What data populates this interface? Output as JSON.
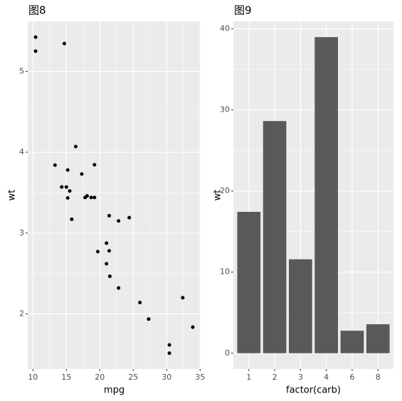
{
  "chart_data": [
    {
      "type": "scatter",
      "title": "图8",
      "x_label": "mpg",
      "y_label": "wt",
      "x": [
        21.0,
        21.0,
        22.8,
        21.4,
        18.7,
        18.1,
        14.3,
        24.4,
        22.8,
        19.2,
        17.8,
        16.4,
        17.3,
        15.2,
        10.4,
        10.4,
        14.7,
        32.4,
        30.4,
        33.9,
        21.5,
        15.5,
        15.2,
        13.3,
        19.2,
        27.3,
        26.0,
        30.4,
        15.8,
        19.7,
        15.0,
        21.4
      ],
      "values": [
        2.62,
        2.875,
        2.32,
        3.215,
        3.44,
        3.46,
        3.57,
        3.19,
        3.15,
        3.44,
        3.44,
        4.07,
        3.73,
        3.78,
        5.25,
        5.424,
        5.345,
        2.2,
        1.615,
        1.835,
        2.465,
        3.52,
        3.435,
        3.84,
        3.845,
        1.935,
        2.14,
        1.513,
        3.17,
        2.77,
        3.57,
        2.78
      ],
      "color": "#000000",
      "xlim": [
        9.225,
        35.075
      ],
      "xticks": [
        10,
        15,
        20,
        25,
        30,
        35
      ],
      "ylim": [
        1.3175,
        5.6196
      ],
      "yticks": [
        2,
        3,
        4,
        5
      ],
      "grid": true
    },
    {
      "type": "bar",
      "title": "图9",
      "x_label": "factor(carb)",
      "y_label": "wt",
      "categories": [
        "1",
        "2",
        "3",
        "4",
        "6",
        "8"
      ],
      "values": [
        17.43,
        28.628,
        11.58,
        38.974,
        2.77,
        3.57
      ],
      "color": "#595959",
      "ylim": [
        -1.9487,
        40.9227
      ],
      "yticks": [
        0,
        10,
        20,
        30,
        40
      ],
      "grid": true
    }
  ]
}
